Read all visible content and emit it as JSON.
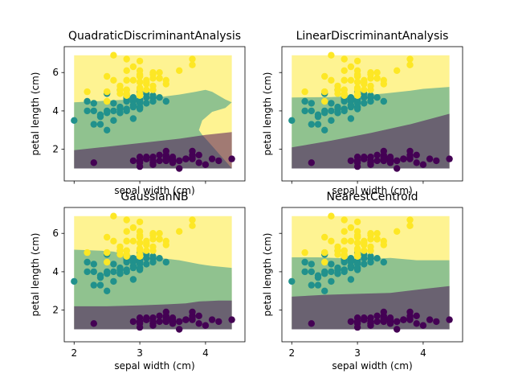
{
  "figure": {
    "background": "#ffffff",
    "colors": {
      "class_0": "#440154",
      "class_1": "#21918c",
      "class_2": "#fde725",
      "region_alpha": 0.5
    }
  },
  "chart_data": [
    {
      "type": "scatter",
      "title": "QuadraticDiscriminantAnalysis",
      "xlabel": "sepal width (cm)",
      "ylabel": "petal length (cm)",
      "xlim": [
        1.85,
        4.6
      ],
      "ylim": [
        0.35,
        7.35
      ],
      "xticks": [
        2,
        3,
        4
      ],
      "yticks": [
        2,
        4,
        6
      ],
      "xtick_labels_visible": false,
      "region_range": {
        "x": [
          2.0,
          4.4
        ],
        "y": [
          1.0,
          6.9
        ]
      },
      "boundaries": {
        "class_0_1": [
          [
            2.0,
            1.95
          ],
          [
            2.4,
            2.1
          ],
          [
            2.8,
            2.25
          ],
          [
            3.2,
            2.4
          ],
          [
            3.6,
            2.55
          ],
          [
            4.0,
            2.75
          ],
          [
            4.4,
            2.9
          ]
        ],
        "class_1_2": [
          [
            2.0,
            4.45
          ],
          [
            2.3,
            4.5
          ],
          [
            2.6,
            4.55
          ],
          [
            3.0,
            4.62
          ],
          [
            3.3,
            4.72
          ],
          [
            3.6,
            4.85
          ],
          [
            3.85,
            5.0
          ],
          [
            4.0,
            5.1
          ],
          [
            4.1,
            5.0
          ],
          [
            4.3,
            4.6
          ],
          [
            4.4,
            4.45
          ],
          [
            4.3,
            4.15
          ],
          [
            4.1,
            3.95
          ],
          [
            3.95,
            3.5
          ],
          [
            3.9,
            3.0
          ],
          [
            3.95,
            2.75
          ]
        ]
      },
      "series": [
        {
          "points": [
            [
              3.5,
              1.4
            ],
            [
              3.0,
              1.4
            ],
            [
              3.2,
              1.3
            ],
            [
              3.1,
              1.5
            ],
            [
              3.6,
              1.4
            ],
            [
              3.9,
              1.7
            ],
            [
              3.4,
              1.4
            ],
            [
              3.4,
              1.5
            ],
            [
              2.9,
              1.4
            ],
            [
              3.1,
              1.5
            ],
            [
              3.7,
              1.5
            ],
            [
              3.4,
              1.6
            ],
            [
              3.0,
              1.4
            ],
            [
              3.0,
              1.1
            ],
            [
              4.0,
              1.2
            ],
            [
              4.4,
              1.5
            ],
            [
              3.9,
              1.3
            ],
            [
              3.5,
              1.4
            ],
            [
              3.8,
              1.7
            ],
            [
              3.8,
              1.5
            ],
            [
              3.4,
              1.7
            ],
            [
              3.7,
              1.5
            ],
            [
              3.6,
              1.0
            ],
            [
              3.3,
              1.7
            ],
            [
              3.4,
              1.9
            ],
            [
              3.0,
              1.6
            ],
            [
              3.4,
              1.6
            ],
            [
              3.5,
              1.5
            ],
            [
              3.4,
              1.4
            ],
            [
              3.2,
              1.6
            ],
            [
              3.1,
              1.6
            ],
            [
              3.4,
              1.5
            ],
            [
              4.1,
              1.5
            ],
            [
              4.2,
              1.4
            ],
            [
              3.1,
              1.5
            ],
            [
              3.2,
              1.2
            ],
            [
              3.5,
              1.3
            ],
            [
              3.6,
              1.4
            ],
            [
              3.0,
              1.3
            ],
            [
              3.4,
              1.5
            ],
            [
              3.5,
              1.3
            ],
            [
              2.3,
              1.3
            ],
            [
              3.2,
              1.3
            ],
            [
              3.5,
              1.6
            ],
            [
              3.8,
              1.9
            ],
            [
              3.0,
              1.4
            ],
            [
              3.8,
              1.6
            ],
            [
              3.2,
              1.4
            ],
            [
              3.7,
              1.5
            ],
            [
              3.3,
              1.4
            ]
          ]
        },
        {
          "points": [
            [
              3.2,
              4.7
            ],
            [
              3.2,
              4.5
            ],
            [
              3.1,
              4.9
            ],
            [
              2.3,
              4.0
            ],
            [
              2.8,
              4.6
            ],
            [
              2.8,
              4.5
            ],
            [
              3.3,
              4.7
            ],
            [
              2.4,
              3.3
            ],
            [
              2.9,
              4.6
            ],
            [
              2.7,
              3.9
            ],
            [
              2.0,
              3.5
            ],
            [
              3.0,
              4.2
            ],
            [
              2.2,
              4.0
            ],
            [
              2.9,
              4.7
            ],
            [
              2.9,
              3.6
            ],
            [
              3.1,
              4.4
            ],
            [
              3.0,
              4.5
            ],
            [
              2.7,
              4.1
            ],
            [
              2.2,
              4.5
            ],
            [
              2.5,
              3.9
            ],
            [
              3.2,
              4.8
            ],
            [
              2.8,
              4.0
            ],
            [
              2.5,
              4.9
            ],
            [
              2.8,
              4.7
            ],
            [
              2.9,
              4.3
            ],
            [
              3.0,
              4.4
            ],
            [
              2.8,
              4.8
            ],
            [
              3.0,
              5.0
            ],
            [
              2.9,
              4.5
            ],
            [
              2.6,
              3.5
            ],
            [
              2.4,
              3.8
            ],
            [
              2.4,
              3.7
            ],
            [
              2.7,
              3.9
            ],
            [
              2.7,
              5.1
            ],
            [
              3.0,
              4.5
            ],
            [
              3.4,
              4.5
            ],
            [
              3.1,
              4.7
            ],
            [
              2.3,
              4.4
            ],
            [
              3.0,
              4.1
            ],
            [
              2.5,
              4.0
            ],
            [
              2.6,
              4.4
            ],
            [
              3.0,
              4.6
            ],
            [
              2.6,
              4.0
            ],
            [
              2.3,
              3.3
            ],
            [
              2.7,
              4.2
            ],
            [
              3.0,
              4.2
            ],
            [
              2.9,
              4.2
            ],
            [
              2.9,
              4.3
            ],
            [
              2.5,
              3.0
            ],
            [
              2.8,
              4.1
            ]
          ]
        },
        {
          "points": [
            [
              3.3,
              6.0
            ],
            [
              2.7,
              5.1
            ],
            [
              3.0,
              5.9
            ],
            [
              2.9,
              5.6
            ],
            [
              3.0,
              5.8
            ],
            [
              3.0,
              6.6
            ],
            [
              2.5,
              4.5
            ],
            [
              2.9,
              6.3
            ],
            [
              2.5,
              5.8
            ],
            [
              3.6,
              6.1
            ],
            [
              3.2,
              5.1
            ],
            [
              2.7,
              5.3
            ],
            [
              3.0,
              5.5
            ],
            [
              2.5,
              5.0
            ],
            [
              2.8,
              5.1
            ],
            [
              3.2,
              5.3
            ],
            [
              3.0,
              5.5
            ],
            [
              3.8,
              6.7
            ],
            [
              2.6,
              6.9
            ],
            [
              2.2,
              5.0
            ],
            [
              3.2,
              5.7
            ],
            [
              2.8,
              4.9
            ],
            [
              2.8,
              6.7
            ],
            [
              2.7,
              4.9
            ],
            [
              3.3,
              5.7
            ],
            [
              3.2,
              6.0
            ],
            [
              2.8,
              4.8
            ],
            [
              3.0,
              4.9
            ],
            [
              2.8,
              5.6
            ],
            [
              3.0,
              5.8
            ],
            [
              2.8,
              6.1
            ],
            [
              3.8,
              6.4
            ],
            [
              2.8,
              5.6
            ],
            [
              2.8,
              5.1
            ],
            [
              2.6,
              5.6
            ],
            [
              3.0,
              6.1
            ],
            [
              3.4,
              5.6
            ],
            [
              3.1,
              5.5
            ],
            [
              3.0,
              4.8
            ],
            [
              3.1,
              5.4
            ],
            [
              3.1,
              5.6
            ],
            [
              3.1,
              5.1
            ],
            [
              2.7,
              5.1
            ],
            [
              3.2,
              5.9
            ],
            [
              3.3,
              5.7
            ],
            [
              3.0,
              5.2
            ],
            [
              2.5,
              5.0
            ],
            [
              3.0,
              5.2
            ],
            [
              3.4,
              5.4
            ],
            [
              3.0,
              5.1
            ]
          ]
        }
      ]
    },
    {
      "type": "scatter",
      "title": "LinearDiscriminantAnalysis",
      "xlabel": "sepal width (cm)",
      "ylabel": "petal length (cm)",
      "xlim": [
        1.85,
        4.6
      ],
      "ylim": [
        0.35,
        7.35
      ],
      "xticks": [
        2,
        3,
        4
      ],
      "yticks": [
        2,
        4,
        6
      ],
      "xtick_labels_visible": false,
      "ytick_labels_visible": false,
      "region_range": {
        "x": [
          2.0,
          4.4
        ],
        "y": [
          1.0,
          6.9
        ]
      },
      "boundaries": {
        "class_0_1": [
          [
            2.0,
            2.1
          ],
          [
            2.6,
            2.45
          ],
          [
            3.2,
            2.85
          ],
          [
            3.8,
            3.3
          ],
          [
            4.4,
            3.85
          ]
        ],
        "class_1_2": [
          [
            2.0,
            4.7
          ],
          [
            2.6,
            4.72
          ],
          [
            3.0,
            4.78
          ],
          [
            3.4,
            4.9
          ],
          [
            3.8,
            5.05
          ],
          [
            4.0,
            5.15
          ],
          [
            4.4,
            5.25
          ]
        ]
      },
      "series_same_as_chart": 0
    },
    {
      "type": "scatter",
      "title": "GaussianNB",
      "xlabel": "sepal width (cm)",
      "ylabel": "petal length (cm)",
      "xlim": [
        1.85,
        4.6
      ],
      "ylim": [
        0.35,
        7.35
      ],
      "xticks": [
        2,
        3,
        4
      ],
      "yticks": [
        2,
        4,
        6
      ],
      "region_range": {
        "x": [
          2.0,
          4.4
        ],
        "y": [
          1.0,
          6.9
        ]
      },
      "boundaries": {
        "class_0_1": [
          [
            2.0,
            2.2
          ],
          [
            2.5,
            2.2
          ],
          [
            3.0,
            2.25
          ],
          [
            3.4,
            2.3
          ],
          [
            3.7,
            2.35
          ],
          [
            3.9,
            2.45
          ],
          [
            4.2,
            2.5
          ],
          [
            4.4,
            2.5
          ]
        ],
        "class_1_2": [
          [
            2.0,
            5.15
          ],
          [
            2.4,
            5.1
          ],
          [
            2.6,
            5.05
          ],
          [
            2.8,
            4.9
          ],
          [
            3.0,
            4.8
          ],
          [
            3.3,
            4.72
          ],
          [
            3.6,
            4.6
          ],
          [
            3.9,
            4.4
          ],
          [
            4.1,
            4.3
          ],
          [
            4.4,
            4.2
          ]
        ]
      },
      "series_same_as_chart": 0
    },
    {
      "type": "scatter",
      "title": "NearestCentroid",
      "xlabel": "sepal width (cm)",
      "ylabel": "petal length (cm)",
      "xlim": [
        1.85,
        4.6
      ],
      "ylim": [
        0.35,
        7.35
      ],
      "xticks": [
        2,
        3,
        4
      ],
      "yticks": [
        2,
        4,
        6
      ],
      "ytick_labels_visible": false,
      "region_range": {
        "x": [
          2.0,
          4.4
        ],
        "y": [
          1.0,
          6.9
        ]
      },
      "boundaries": {
        "class_0_1": [
          [
            2.0,
            2.7
          ],
          [
            2.5,
            2.8
          ],
          [
            3.0,
            2.85
          ],
          [
            3.5,
            2.9
          ],
          [
            4.0,
            3.1
          ],
          [
            4.4,
            3.25
          ]
        ],
        "class_1_2": [
          [
            2.0,
            4.75
          ],
          [
            2.4,
            4.75
          ],
          [
            2.8,
            4.7
          ],
          [
            3.1,
            4.65
          ],
          [
            3.5,
            4.72
          ],
          [
            3.9,
            4.6
          ],
          [
            4.4,
            4.6
          ]
        ]
      },
      "series_same_as_chart": 0
    }
  ]
}
